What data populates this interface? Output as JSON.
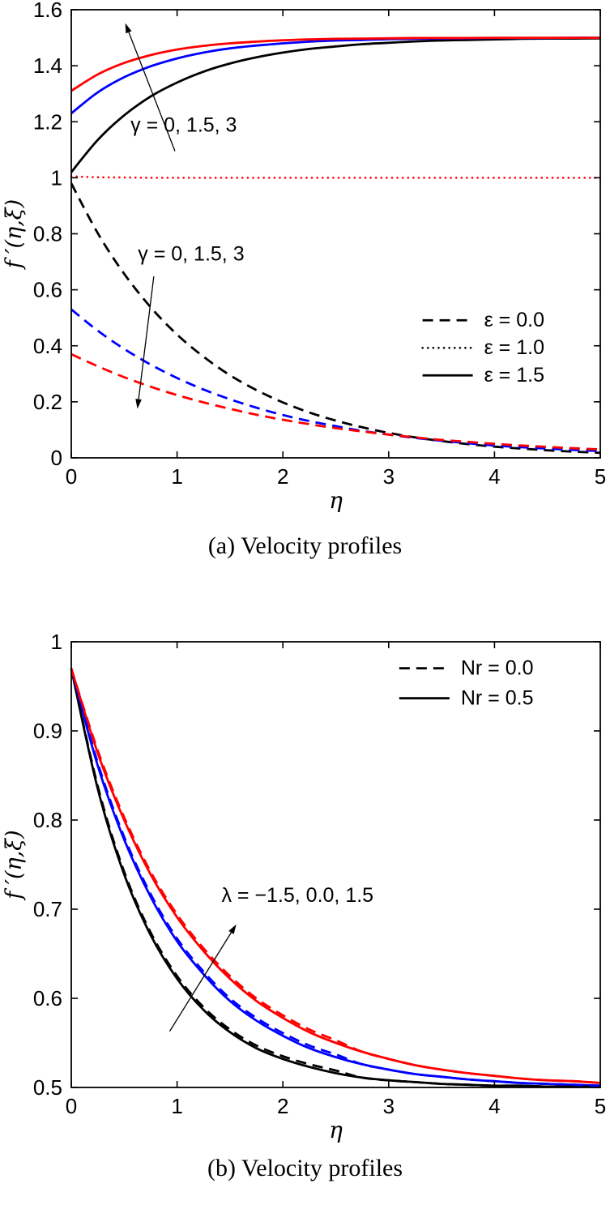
{
  "page": {
    "background": "#ffffff",
    "text_color": "#000000"
  },
  "chart_data": [
    {
      "id": "a",
      "type": "line",
      "caption": "(a)  Velocity profiles",
      "xlabel": "η",
      "ylabel": "f ′(η,ξ)",
      "xlim": [
        0,
        5
      ],
      "ylim": [
        0,
        1.6
      ],
      "grid": false,
      "x_ticks": [
        0,
        1,
        2,
        3,
        4,
        5
      ],
      "x_tick_labels": [
        "0",
        "1",
        "2",
        "3",
        "4",
        "5"
      ],
      "y_ticks": [
        0,
        0.2,
        0.4,
        0.6,
        0.8,
        1.0,
        1.2,
        1.4,
        1.6
      ],
      "y_tick_labels": [
        "0",
        "0.2",
        "0.4",
        "0.6",
        "0.8",
        "1",
        "1.2",
        "1.4",
        "1.6"
      ],
      "x": [
        0,
        0.25,
        0.5,
        0.75,
        1,
        1.25,
        1.5,
        1.75,
        2,
        2.25,
        2.5,
        2.75,
        3,
        3.25,
        3.5,
        3.75,
        4,
        4.25,
        4.5,
        4.75,
        5
      ],
      "series": [
        {
          "name": "eps-0.0-gamma-0",
          "label": "ε = 0.0, γ = 0",
          "color": "#000000",
          "style": "dashed",
          "values": [
            0.98,
            0.802,
            0.657,
            0.538,
            0.44,
            0.361,
            0.295,
            0.242,
            0.198,
            0.162,
            0.133,
            0.109,
            0.089,
            0.073,
            0.06,
            0.049,
            0.04,
            0.033,
            0.027,
            0.022,
            0.018
          ]
        },
        {
          "name": "eps-0.0-gamma-1.5",
          "label": "ε = 0.0, γ = 1.5",
          "color": "#0000ff",
          "style": "dashed",
          "values": [
            0.53,
            0.454,
            0.389,
            0.333,
            0.285,
            0.244,
            0.209,
            0.179,
            0.153,
            0.131,
            0.113,
            0.096,
            0.083,
            0.071,
            0.061,
            0.052,
            0.044,
            0.038,
            0.033,
            0.028,
            0.024
          ]
        },
        {
          "name": "eps-0.0-gamma-3",
          "label": "ε = 0.0, γ = 3",
          "color": "#ff0000",
          "style": "dashed",
          "values": [
            0.37,
            0.327,
            0.288,
            0.254,
            0.224,
            0.198,
            0.175,
            0.154,
            0.136,
            0.12,
            0.106,
            0.094,
            0.083,
            0.073,
            0.064,
            0.057,
            0.05,
            0.044,
            0.039,
            0.034,
            0.03
          ]
        },
        {
          "name": "eps-1.0",
          "label": "ε = 1.0",
          "color": "#ff0000",
          "style": "dotted",
          "values": [
            1.005,
            1.002,
            1.001,
            1,
            1,
            1,
            1,
            1,
            1,
            1,
            1,
            1,
            1,
            1,
            1,
            1,
            1,
            1,
            1,
            1,
            1
          ]
        },
        {
          "name": "eps-1.5-gamma-0",
          "label": "ε = 1.5, γ = 0",
          "color": "#000000",
          "style": "solid",
          "values": [
            1.02,
            1.135,
            1.223,
            1.29,
            1.34,
            1.379,
            1.408,
            1.43,
            1.447,
            1.46,
            1.469,
            1.477,
            1.482,
            1.487,
            1.49,
            1.492,
            1.494,
            1.496,
            1.497,
            1.497,
            1.498
          ]
        },
        {
          "name": "eps-1.5-gamma-1.5",
          "label": "ε = 1.5, γ = 1.5",
          "color": "#0000ff",
          "style": "solid",
          "values": [
            1.23,
            1.305,
            1.359,
            1.398,
            1.426,
            1.447,
            1.462,
            1.472,
            1.48,
            1.486,
            1.49,
            1.492,
            1.495,
            1.496,
            1.497,
            1.498,
            1.499,
            1.499,
            1.499,
            1.5,
            1.5
          ]
        },
        {
          "name": "eps-1.5-gamma-3",
          "label": "ε = 1.5, γ = 3",
          "color": "#ff0000",
          "style": "solid",
          "values": [
            1.31,
            1.369,
            1.41,
            1.438,
            1.458,
            1.471,
            1.48,
            1.486,
            1.491,
            1.494,
            1.496,
            1.497,
            1.498,
            1.499,
            1.499,
            1.499,
            1.5,
            1.5,
            1.5,
            1.5,
            1.5
          ]
        }
      ],
      "legend": {
        "position": "right-middle",
        "x": 3.32,
        "y": 0.468,
        "entries": [
          {
            "label": "ε = 0.0",
            "style": "dashed",
            "color": "#000000"
          },
          {
            "label": "ε = 1.0",
            "style": "dotted",
            "color": "#000000"
          },
          {
            "label": "ε = 1.5",
            "style": "solid",
            "color": "#000000"
          }
        ]
      },
      "annotations": [
        {
          "text": "γ = 0, 1.5, 3",
          "x": 0.56,
          "y": 1.165,
          "arrow": {
            "x1": 0.98,
            "y1": 1.095,
            "x2": 0.51,
            "y2": 1.552
          }
        },
        {
          "text": "γ = 0, 1.5, 3",
          "x": 0.63,
          "y": 0.705,
          "arrow": {
            "x1": 0.78,
            "y1": 0.648,
            "x2": 0.625,
            "y2": 0.175
          }
        }
      ]
    },
    {
      "id": "b",
      "type": "line",
      "caption": "(b)  Velocity profiles",
      "xlabel": "η",
      "ylabel": "f ′(η,ξ)",
      "xlim": [
        0,
        5
      ],
      "ylim": [
        0.5,
        1.0
      ],
      "grid": false,
      "x_ticks": [
        0,
        1,
        2,
        3,
        4,
        5
      ],
      "x_tick_labels": [
        "0",
        "1",
        "2",
        "3",
        "4",
        "5"
      ],
      "y_ticks": [
        0.5,
        0.6,
        0.7,
        0.8,
        0.9,
        1.0
      ],
      "y_tick_labels": [
        "0.5",
        "0.6",
        "0.7",
        "0.8",
        "0.9",
        "1"
      ],
      "x": [
        0,
        0.25,
        0.5,
        0.75,
        1,
        1.25,
        1.5,
        1.75,
        2,
        2.25,
        2.5,
        2.75,
        3,
        3.25,
        3.5,
        3.75,
        4,
        4.25,
        4.5,
        4.75,
        5
      ],
      "series": [
        {
          "name": "nr-0.5-lambda--1.5",
          "label": "Nr = 0.5, λ = −1.5",
          "color": "#000000",
          "style": "solid",
          "values": [
            0.97,
            0.835,
            0.739,
            0.671,
            0.622,
            0.587,
            0.562,
            0.544,
            0.532,
            0.523,
            0.516,
            0.511,
            0.508,
            0.506,
            0.504,
            0.503,
            0.502,
            0.502,
            0.501,
            0.501,
            0.501
          ]
        },
        {
          "name": "nr-0.5-lambda-0.0",
          "label": "Nr = 0.5, λ = 0.0",
          "color": "#0000ff",
          "style": "solid",
          "values": [
            0.97,
            0.861,
            0.778,
            0.714,
            0.664,
            0.627,
            0.597,
            0.575,
            0.558,
            0.544,
            0.534,
            0.526,
            0.52,
            0.515,
            0.512,
            0.509,
            0.507,
            0.505,
            0.504,
            0.503,
            0.502
          ]
        },
        {
          "name": "nr-0.5-lambda-1.5",
          "label": "Nr = 0.5, λ = 1.5",
          "color": "#ff0000",
          "style": "solid",
          "values": [
            0.97,
            0.875,
            0.8,
            0.739,
            0.691,
            0.653,
            0.622,
            0.597,
            0.578,
            0.562,
            0.55,
            0.54,
            0.532,
            0.525,
            0.52,
            0.516,
            0.513,
            0.51,
            0.508,
            0.507,
            0.505
          ]
        },
        {
          "name": "nr-0.0-lambda--1.5",
          "label": "Nr = 0.0, λ = −1.5",
          "color": "#000000",
          "style": "dashed",
          "values": [
            0.97,
            0.838,
            0.742,
            0.674,
            0.625,
            0.59,
            0.565,
            0.547,
            0.535,
            0.526,
            0.519,
            0.511,
            0.508,
            0.506,
            0.504,
            0.503,
            0.502,
            0.502,
            0.501,
            0.501,
            0.501
          ]
        },
        {
          "name": "nr-0.0-lambda-0.0",
          "label": "Nr = 0.0, λ = 0.0",
          "color": "#0000ff",
          "style": "dashed",
          "values": [
            0.97,
            0.864,
            0.781,
            0.717,
            0.667,
            0.63,
            0.6,
            0.578,
            0.561,
            0.547,
            0.537,
            0.526,
            0.52,
            0.515,
            0.512,
            0.509,
            0.507,
            0.505,
            0.504,
            0.503,
            0.502
          ]
        },
        {
          "name": "nr-0.0-lambda-1.5",
          "label": "Nr = 0.0, λ = 1.5",
          "color": "#ff0000",
          "style": "dashed",
          "values": [
            0.97,
            0.878,
            0.803,
            0.742,
            0.694,
            0.656,
            0.625,
            0.6,
            0.581,
            0.565,
            0.553,
            0.54,
            0.532,
            0.525,
            0.52,
            0.516,
            0.513,
            0.51,
            0.508,
            0.507,
            0.505
          ]
        }
      ],
      "legend": {
        "position": "top-right",
        "x": 3.1,
        "y": 0.963,
        "entries": [
          {
            "label": "Nr = 0.0",
            "style": "dashed",
            "color": "#000000"
          },
          {
            "label": "Nr = 0.5",
            "style": "solid",
            "color": "#000000"
          }
        ]
      },
      "annotations": [
        {
          "text": "λ = −1.5, 0.0, 1.5",
          "x": 1.42,
          "y": 0.708,
          "arrow": {
            "x1": 0.93,
            "y1": 0.563,
            "x2": 1.56,
            "y2": 0.683
          }
        }
      ]
    }
  ]
}
